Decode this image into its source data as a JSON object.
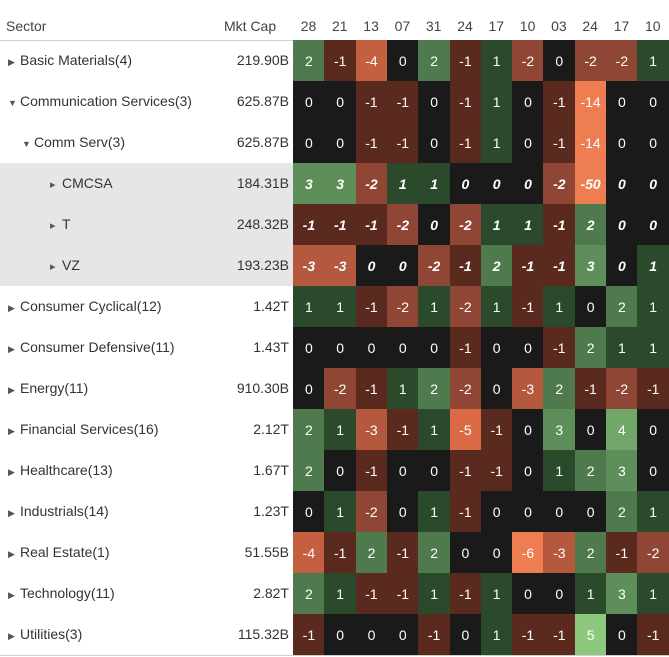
{
  "header": {
    "sector_label": "Sector",
    "mcap_label": "Mkt Cap",
    "columns": [
      "28",
      "21",
      "13",
      "07",
      "31",
      "24",
      "17",
      "10",
      "03",
      "24",
      "17",
      "10"
    ]
  },
  "colors": {
    "neg_6": "#ef7d52",
    "neg_5": "#d96a45",
    "neg_4": "#c45f3f",
    "neg_3": "#b4583e",
    "neg_2": "#8f4634",
    "neg_1": "#5b2a1f",
    "zero": "#1a1a1a",
    "pos_1": "#2b4a2c",
    "pos_2": "#4f7a4d",
    "pos_3": "#5e8e5a",
    "pos_4": "#71a86a",
    "pos_5": "#8cc97f",
    "big_neg": "#ef7d52"
  },
  "rows": [
    {
      "label": "Basic Materials(4)",
      "indent": 0,
      "expander": "right",
      "mcap": "219.90B",
      "values": [
        "2",
        "-1",
        "-4",
        "0",
        "2",
        "-1",
        "1",
        "-2",
        "0",
        "-2",
        "-2",
        "1"
      ]
    },
    {
      "label": "Communication Services(3)",
      "indent": 0,
      "expander": "down",
      "mcap": "625.87B",
      "values": [
        "0",
        "0",
        "-1",
        "-1",
        "0",
        "-1",
        "1",
        "0",
        "-1",
        "-14",
        "0",
        "0"
      ]
    },
    {
      "label": "Comm Serv(3)",
      "indent": 1,
      "expander": "down",
      "mcap": "625.87B",
      "values": [
        "0",
        "0",
        "-1",
        "-1",
        "0",
        "-1",
        "1",
        "0",
        "-1",
        "-14",
        "0",
        "0"
      ]
    },
    {
      "label": "CMCSA",
      "indent": 2,
      "expander": "small",
      "mcap": "184.31B",
      "selected": true,
      "italic": true,
      "values": [
        "3",
        "3",
        "-2",
        "1",
        "1",
        "0",
        "0",
        "0",
        "-2",
        "-50",
        "0",
        "0"
      ]
    },
    {
      "label": "T",
      "indent": 2,
      "expander": "small",
      "mcap": "248.32B",
      "selected": true,
      "italic": true,
      "values": [
        "-1",
        "-1",
        "-1",
        "-2",
        "0",
        "-2",
        "1",
        "1",
        "-1",
        "2",
        "0",
        "0"
      ]
    },
    {
      "label": "VZ",
      "indent": 2,
      "expander": "small",
      "mcap": "193.23B",
      "selected": true,
      "italic": true,
      "values": [
        "-3",
        "-3",
        "0",
        "0",
        "-2",
        "-1",
        "2",
        "-1",
        "-1",
        "3",
        "0",
        "1"
      ]
    },
    {
      "label": "Consumer Cyclical(12)",
      "indent": 0,
      "expander": "right",
      "mcap": "1.42T",
      "values": [
        "1",
        "1",
        "-1",
        "-2",
        "1",
        "-2",
        "1",
        "-1",
        "1",
        "0",
        "2",
        "1"
      ]
    },
    {
      "label": "Consumer Defensive(11)",
      "indent": 0,
      "expander": "right",
      "mcap": "1.43T",
      "values": [
        "0",
        "0",
        "0",
        "0",
        "0",
        "-1",
        "0",
        "0",
        "-1",
        "2",
        "1",
        "1"
      ]
    },
    {
      "label": "Energy(11)",
      "indent": 0,
      "expander": "right",
      "mcap": "910.30B",
      "values": [
        "0",
        "-2",
        "-1",
        "1",
        "2",
        "-2",
        "0",
        "-3",
        "2",
        "-1",
        "-2",
        "-1"
      ]
    },
    {
      "label": "Financial Services(16)",
      "indent": 0,
      "expander": "right",
      "mcap": "2.12T",
      "values": [
        "2",
        "1",
        "-3",
        "-1",
        "1",
        "-5",
        "-1",
        "0",
        "3",
        "0",
        "4",
        "0"
      ]
    },
    {
      "label": "Healthcare(13)",
      "indent": 0,
      "expander": "right",
      "mcap": "1.67T",
      "values": [
        "2",
        "0",
        "-1",
        "0",
        "0",
        "-1",
        "-1",
        "0",
        "1",
        "2",
        "3",
        "0"
      ]
    },
    {
      "label": "Industrials(14)",
      "indent": 0,
      "expander": "right",
      "mcap": "1.23T",
      "values": [
        "0",
        "1",
        "-2",
        "0",
        "1",
        "-1",
        "0",
        "0",
        "0",
        "0",
        "2",
        "1"
      ]
    },
    {
      "label": "Real Estate(1)",
      "indent": 0,
      "expander": "right",
      "mcap": "51.55B",
      "values": [
        "-4",
        "-1",
        "2",
        "-1",
        "2",
        "0",
        "0",
        "-6",
        "-3",
        "2",
        "-1",
        "-2"
      ]
    },
    {
      "label": "Technology(11)",
      "indent": 0,
      "expander": "right",
      "mcap": "2.82T",
      "values": [
        "2",
        "1",
        "-1",
        "-1",
        "1",
        "-1",
        "1",
        "0",
        "0",
        "1",
        "3",
        "1"
      ]
    },
    {
      "label": "Utilities(3)",
      "indent": 0,
      "expander": "right",
      "mcap": "115.32B",
      "values": [
        "-1",
        "0",
        "0",
        "0",
        "-1",
        "0",
        "1",
        "-1",
        "-1",
        "5",
        "0",
        "-1"
      ]
    }
  ]
}
